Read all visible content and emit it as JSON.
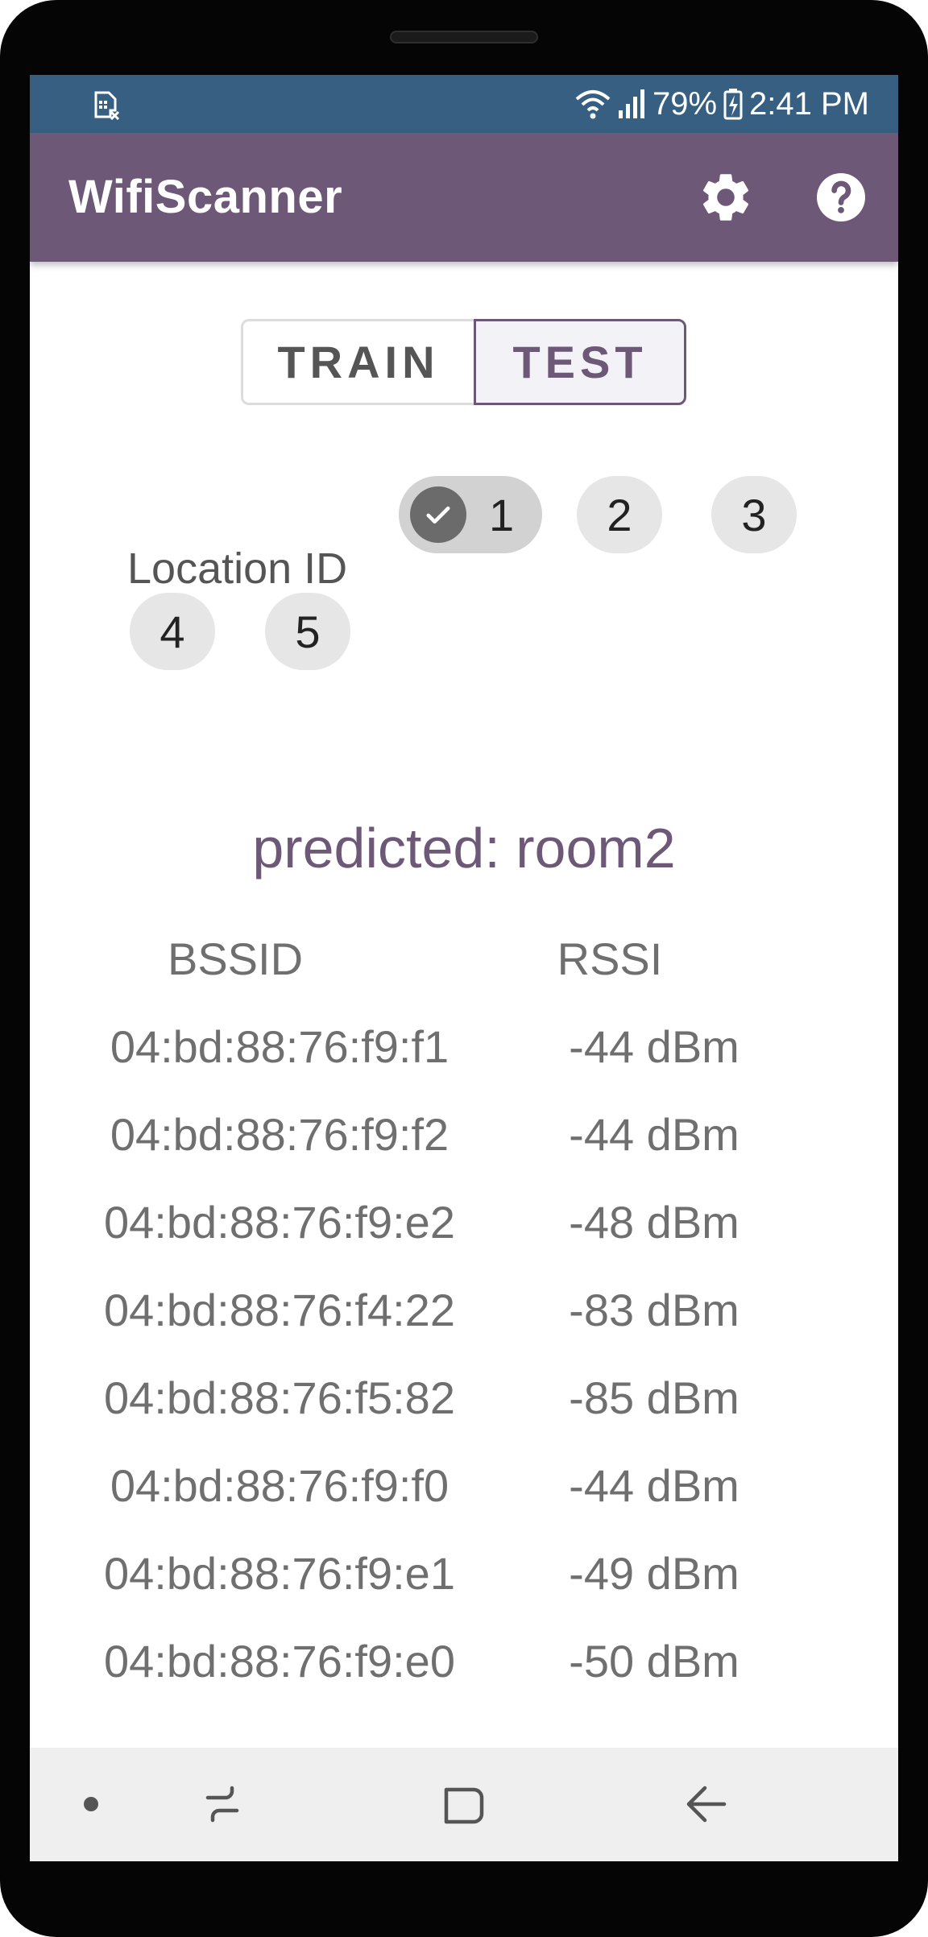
{
  "status_bar": {
    "battery": "79%",
    "time": "2:41 PM",
    "icons": [
      "sim-error-icon",
      "wifi-icon",
      "signal-icon",
      "battery-charging-icon"
    ]
  },
  "app_bar": {
    "title": "WifiScanner",
    "actions": [
      "settings-icon",
      "help-icon"
    ]
  },
  "mode_toggle": {
    "options": [
      "TRAIN",
      "TEST"
    ],
    "selected": "TEST"
  },
  "location": {
    "label": "Location ID",
    "options": [
      "1",
      "2",
      "3",
      "4",
      "5"
    ],
    "selected": "1"
  },
  "prediction": "predicted: room2",
  "table": {
    "headers": {
      "bssid": "BSSID",
      "rssi": "RSSI"
    },
    "rows": [
      {
        "bssid": "04:bd:88:76:f9:f1",
        "rssi": "-44 dBm"
      },
      {
        "bssid": "04:bd:88:76:f9:f2",
        "rssi": "-44 dBm"
      },
      {
        "bssid": "04:bd:88:76:f9:e2",
        "rssi": "-48 dBm"
      },
      {
        "bssid": "04:bd:88:76:f4:22",
        "rssi": "-83 dBm"
      },
      {
        "bssid": "04:bd:88:76:f5:82",
        "rssi": "-85 dBm"
      },
      {
        "bssid": "04:bd:88:76:f9:f0",
        "rssi": "-44 dBm"
      },
      {
        "bssid": "04:bd:88:76:f9:e1",
        "rssi": "-49 dBm"
      },
      {
        "bssid": "04:bd:88:76:f9:e0",
        "rssi": "-50 dBm"
      }
    ]
  },
  "nav_bar": {
    "items": [
      "dot-icon",
      "recent-apps-icon",
      "home-icon",
      "back-icon"
    ]
  },
  "colors": {
    "status_bar": "#365f82",
    "app_bar": "#6e5877",
    "accent": "#6e5877"
  }
}
